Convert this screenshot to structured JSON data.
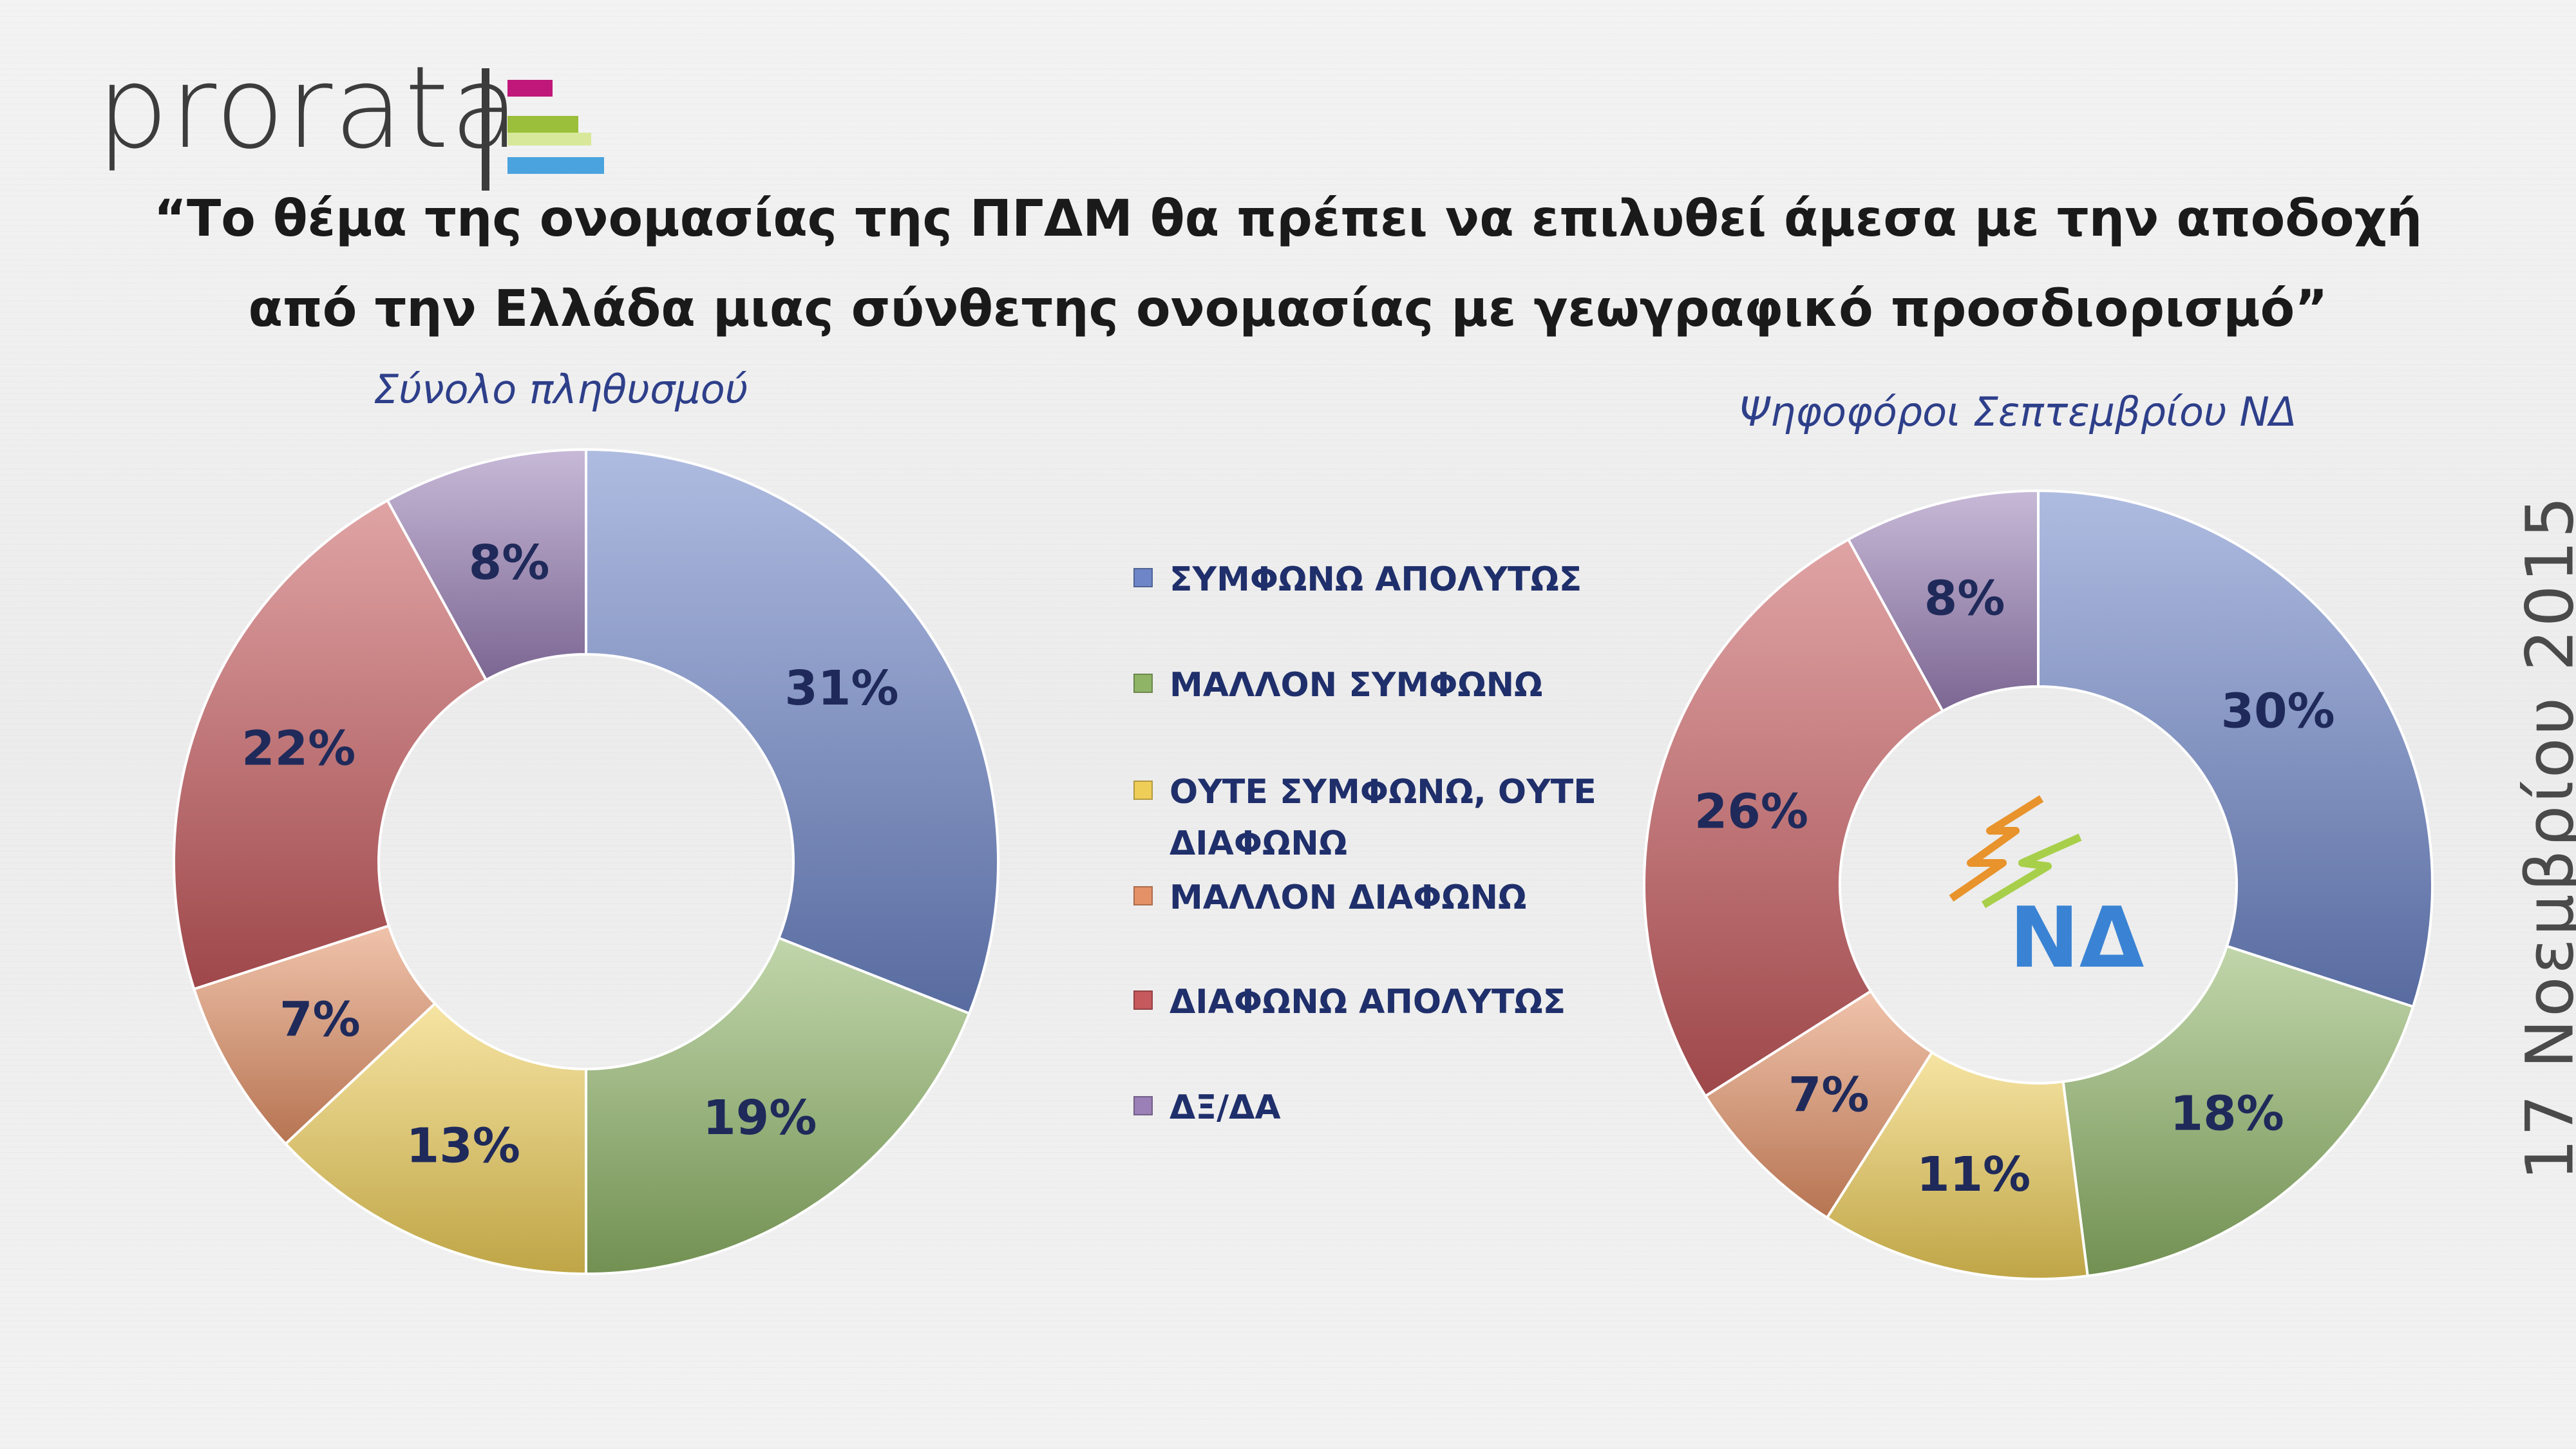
{
  "logo": {
    "text": "prorata"
  },
  "title": {
    "line1": "“Το θέμα της ονομασίας της ΠΓΔΜ θα πρέπει να επιλυθεί άμεσα με την αποδοχή",
    "line2": "από την Ελλάδα μιας σύνθετης ονομασίας με γεωγραφικό προσδιορισμό”"
  },
  "date": "17 Νοεμβρίου 2015",
  "nd_logo": {
    "text": "ΝΔ"
  },
  "colors": {
    "blue": "#6e86c8",
    "green": "#8fb466",
    "yellow": "#efce58",
    "orange": "#e49167",
    "red": "#c6595c",
    "purple": "#9a80b6"
  },
  "chart_data": [
    {
      "type": "pie",
      "variant": "donut",
      "title": "Σύνολο πληθυσμού",
      "categories": [
        "ΣΥΜΦΩΝΩ ΑΠΟΛΥΤΩΣ",
        "ΜΑΛΛΟΝ ΣΥΜΦΩΝΩ",
        "ΟΥΤΕ ΣΥΜΦΩΝΩ, ΟΥΤΕ ΔΙΑΦΩΝΩ",
        "ΜΑΛΛΟΝ ΔΙΑΦΩΝΩ",
        "ΔΙΑΦΩΝΩ ΑΠΟΛΥΤΩΣ",
        "ΔΞ/ΔΑ"
      ],
      "values": [
        31,
        19,
        13,
        7,
        22,
        8
      ],
      "labels": [
        "31%",
        "19%",
        "13%",
        "7%",
        "22%",
        "8%"
      ],
      "unit": "%"
    },
    {
      "type": "pie",
      "variant": "donut",
      "title": "Ψηφοφόροι Σεπτεμβρίου ΝΔ",
      "categories": [
        "ΣΥΜΦΩΝΩ ΑΠΟΛΥΤΩΣ",
        "ΜΑΛΛΟΝ ΣΥΜΦΩΝΩ",
        "ΟΥΤΕ ΣΥΜΦΩΝΩ, ΟΥΤΕ ΔΙΑΦΩΝΩ",
        "ΜΑΛΛΟΝ ΔΙΑΦΩΝΩ",
        "ΔΙΑΦΩΝΩ ΑΠΟΛΥΤΩΣ",
        "ΔΞ/ΔΑ"
      ],
      "values": [
        30,
        18,
        11,
        7,
        26,
        8
      ],
      "labels": [
        "30%",
        "18%",
        "11%",
        "7%",
        "26%",
        "8%"
      ],
      "unit": "%"
    }
  ],
  "legend": {
    "placement": "center",
    "items": [
      {
        "label": "ΣΥΜΦΩΝΩ ΑΠΟΛΥΤΩΣ",
        "color": "#6e86c8"
      },
      {
        "label": "ΜΑΛΛΟΝ ΣΥΜΦΩΝΩ",
        "color": "#8fb466"
      },
      {
        "label": "ΟΥΤΕ ΣΥΜΦΩΝΩ, ΟΥΤΕ ΔΙΑΦΩΝΩ",
        "color": "#efce58"
      },
      {
        "label": "ΜΑΛΛΟΝ ΔΙΑΦΩΝΩ",
        "color": "#e49167"
      },
      {
        "label": "ΔΙΑΦΩΝΩ ΑΠΟΛΥΤΩΣ",
        "color": "#c6595c"
      },
      {
        "label": "ΔΞ/ΔΑ",
        "color": "#9a80b6"
      }
    ]
  }
}
